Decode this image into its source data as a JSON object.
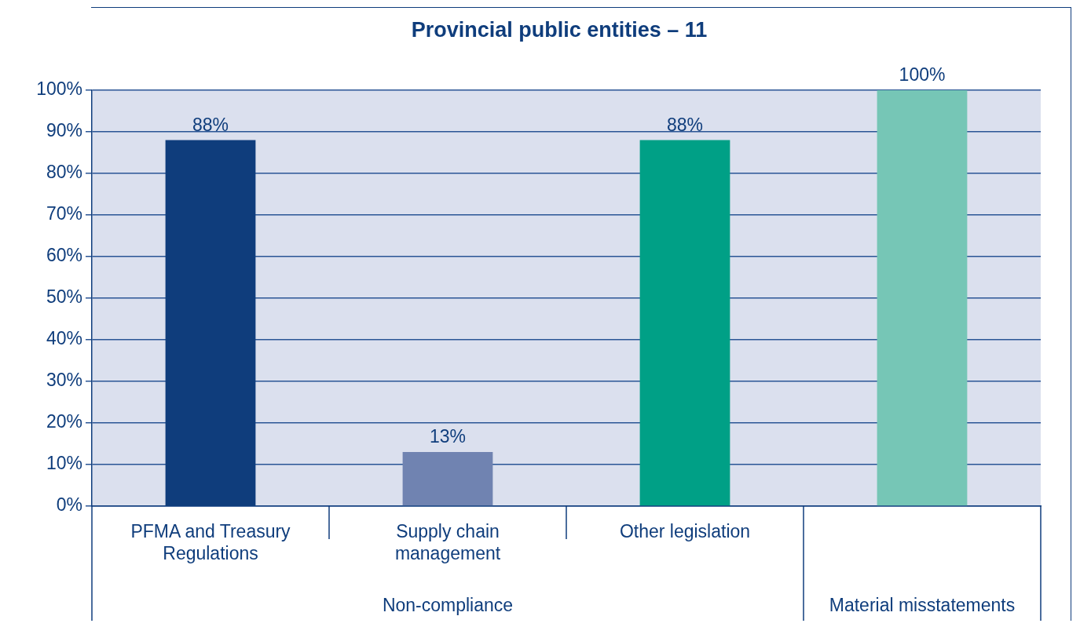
{
  "chart_data": {
    "type": "bar",
    "title": "Provincial public entities – 11",
    "categories": [
      "PFMA and Treasury Regulations",
      "Supply chain management",
      "Other legislation",
      null
    ],
    "values": [
      88,
      13,
      88,
      100
    ],
    "colors": [
      "#0f3d7c",
      "#7083b1",
      "#00a086",
      "#76c6b6"
    ],
    "ylim": [
      0,
      100
    ],
    "yticks": [
      {
        "value": 0,
        "label": "0%"
      },
      {
        "value": 10,
        "label": "10%"
      },
      {
        "value": 20,
        "label": "20%"
      },
      {
        "value": 30,
        "label": "30%"
      },
      {
        "value": 40,
        "label": "40%"
      },
      {
        "value": 50,
        "label": "50%"
      },
      {
        "value": 60,
        "label": "60%"
      },
      {
        "value": 70,
        "label": "70%"
      },
      {
        "value": 80,
        "label": "80%"
      },
      {
        "value": 90,
        "label": "90%"
      },
      {
        "value": 100,
        "label": "100%"
      }
    ],
    "value_labels": [
      "88%",
      "13%",
      "88%",
      "100%"
    ],
    "annotations": [
      "Non-compliance",
      "Material misstatements"
    ],
    "grid": "y",
    "legend": false
  }
}
